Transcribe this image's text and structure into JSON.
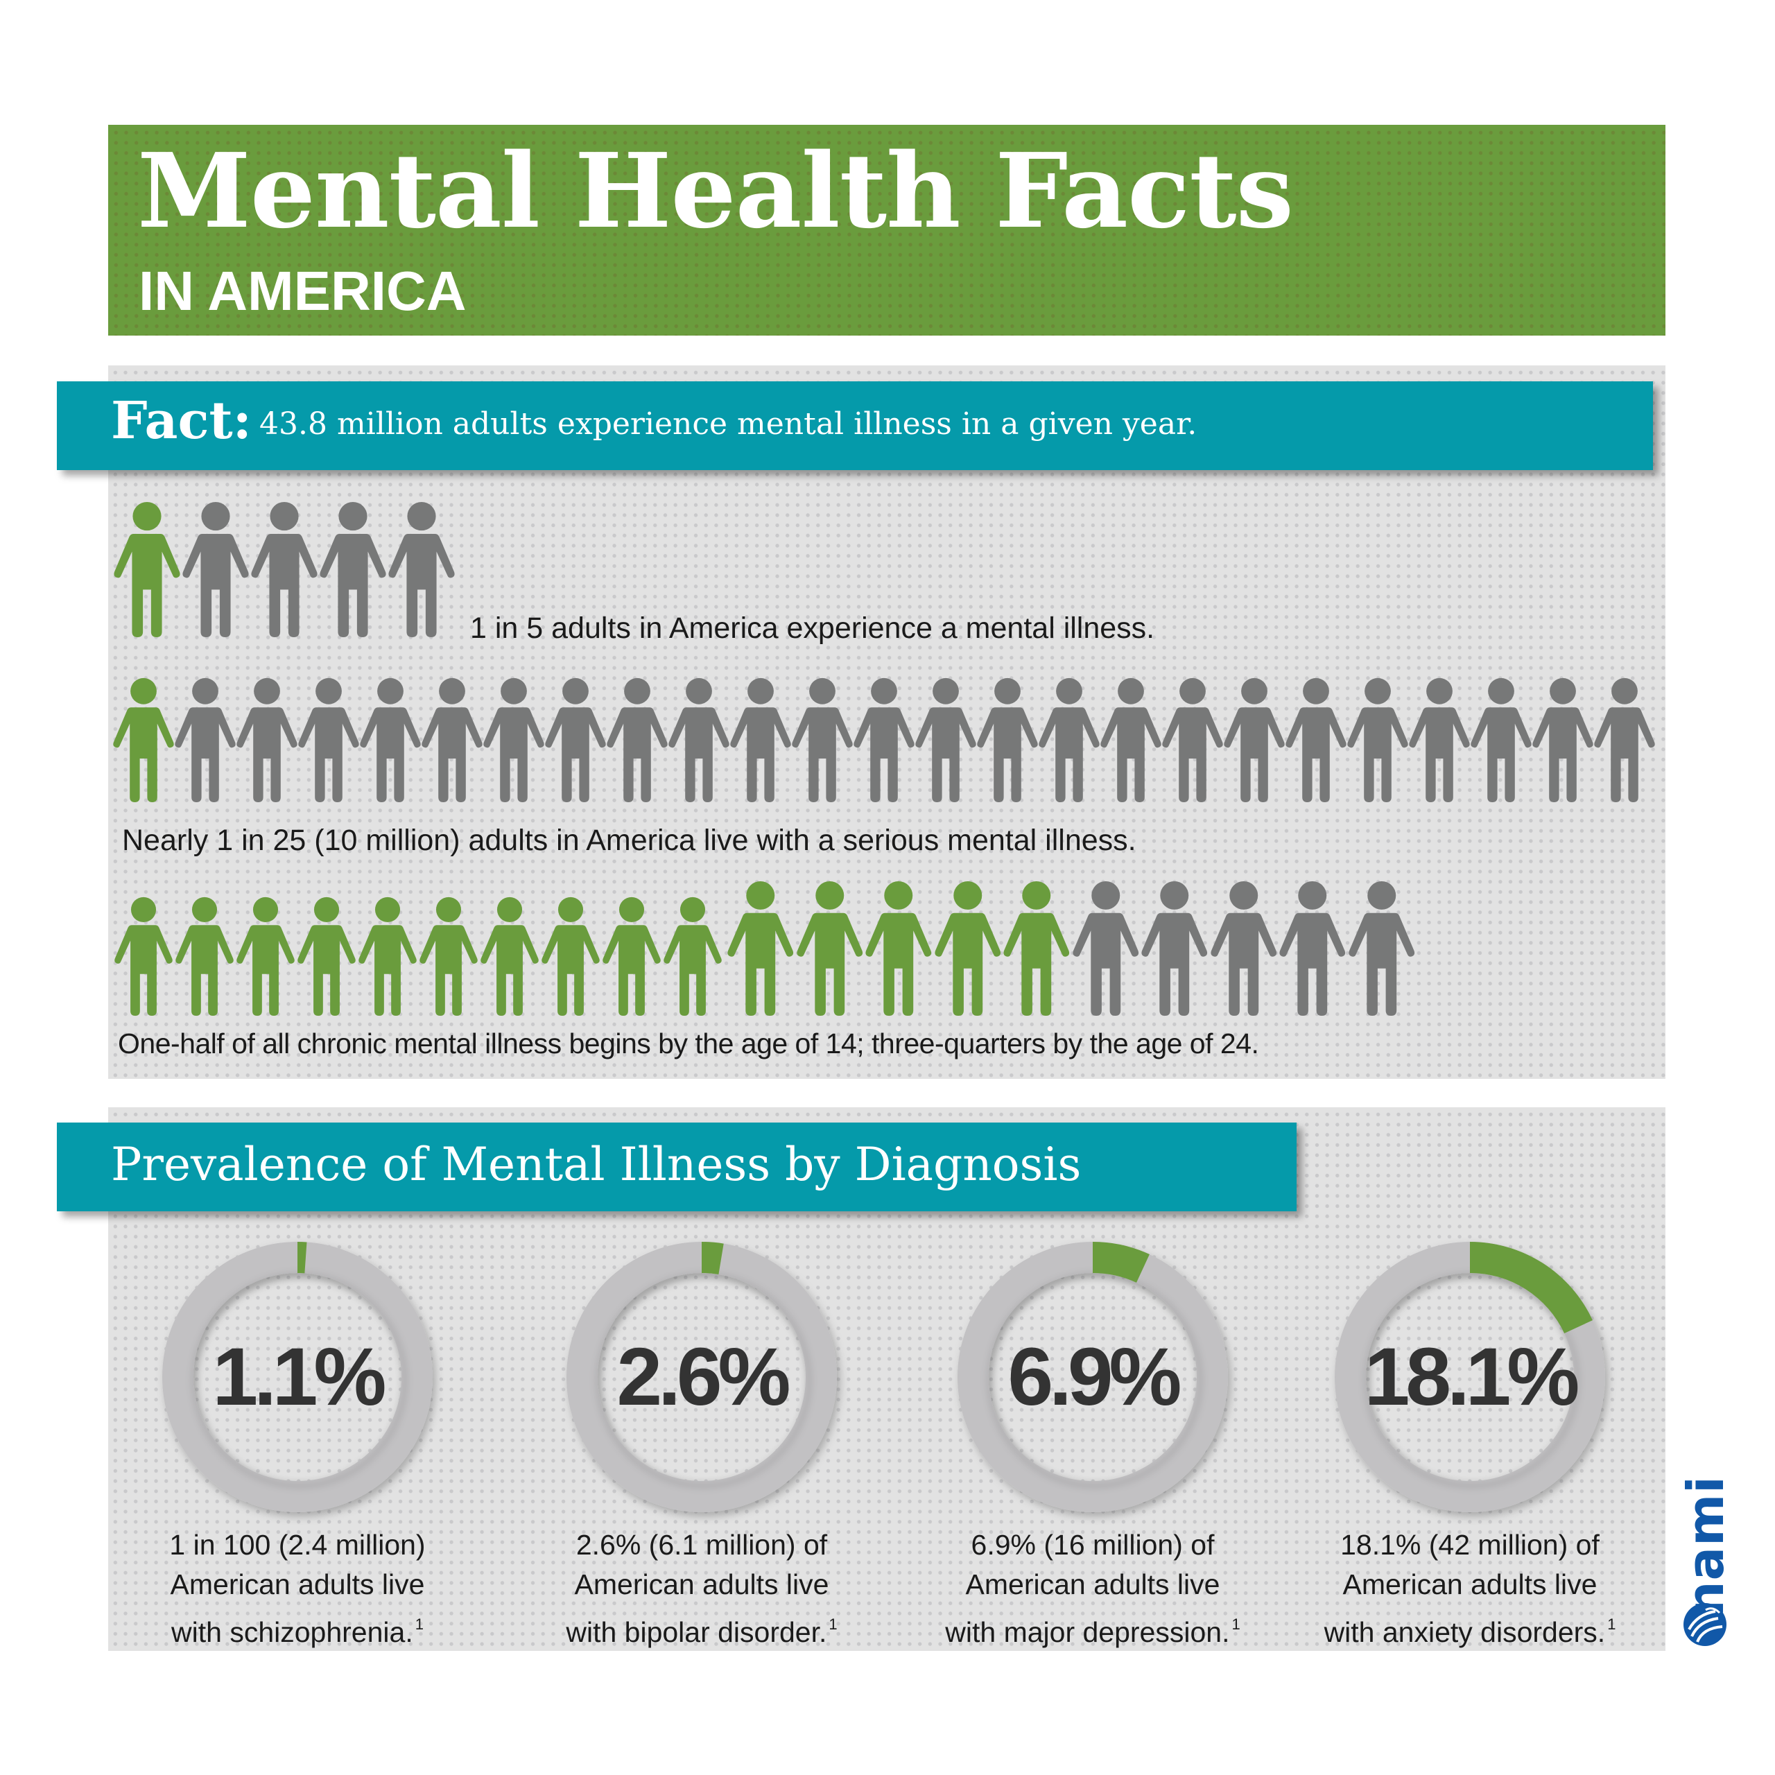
{
  "banner": {
    "title": "Mental Health Facts",
    "subtitle": "IN AMERICA"
  },
  "fact_section": {
    "label": "Fact:",
    "text": "43.8 million adults experience mental illness in a given year.",
    "rows": [
      {
        "caption": "1 in 5 adults in America experience a mental illness.",
        "highlighted": 1,
        "total": 5
      },
      {
        "caption": "Nearly 1 in 25 (10 million) adults in America live with a serious mental illness.",
        "highlighted": 1,
        "total": 25
      },
      {
        "caption": "One-half of all chronic mental illness begins by the age of 14; three-quarters by the age of 24.",
        "small_highlighted": 10,
        "large_highlighted": 5,
        "large_gray": 5,
        "total": 20
      }
    ]
  },
  "prevalence_section": {
    "title": "Prevalence of Mental Illness by Diagnosis",
    "items": [
      {
        "percent_label": "1.1%",
        "caption_lines": [
          "1 in 100 (2.4 million)",
          "American adults live",
          "with schizophrenia."
        ],
        "footnote": "1"
      },
      {
        "percent_label": "2.6%",
        "caption_lines": [
          "2.6% (6.1 million) of",
          "American adults live",
          "with bipolar disorder."
        ],
        "footnote": "1"
      },
      {
        "percent_label": "6.9%",
        "caption_lines": [
          "6.9% (16 million) of",
          "American adults live",
          "with major depression."
        ],
        "footnote": "1"
      },
      {
        "percent_label": "18.1%",
        "caption_lines": [
          "18.1% (42 million) of",
          "American adults live",
          "with anxiety disorders."
        ],
        "footnote": "1"
      }
    ]
  },
  "logo": {
    "text": "nami",
    "icon": "globe-icon"
  },
  "colors": {
    "green": "#6a9c3d",
    "teal": "#059aaa",
    "gray_person": "#777878",
    "ring_gray": "#c2c1c3",
    "panel_bg": "#e2e2e2",
    "text_dark": "#333333",
    "logo_blue": "#1158a8"
  },
  "chart_data": {
    "type": "pie",
    "title": "Prevalence of Mental Illness by Diagnosis",
    "categories": [
      "Schizophrenia",
      "Bipolar disorder",
      "Major depression",
      "Anxiety disorders"
    ],
    "values": [
      1.1,
      2.6,
      6.9,
      18.1
    ],
    "unit": "% of American adults",
    "counts_millions": [
      2.4,
      6.1,
      16,
      42
    ],
    "extra": {
      "any_mental_illness_millions": 43.8,
      "any_mental_illness_ratio": "1 in 5",
      "serious_mental_illness_ratio": "1 in 25",
      "serious_mental_illness_millions": 10,
      "onset_half_by_age": 14,
      "onset_three_quarters_by_age": 24
    }
  }
}
